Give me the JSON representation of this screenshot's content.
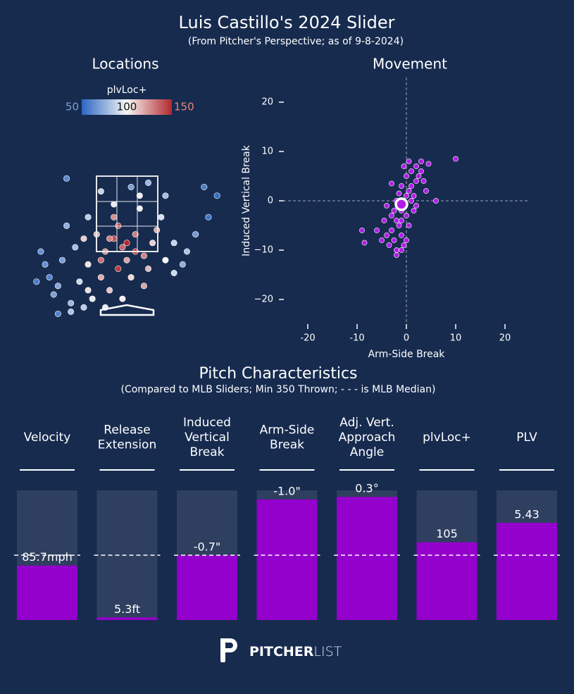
{
  "title": "Luis Castillo's 2024 Slider",
  "subtitle": "(From Pitcher's Perspective; as of 9-8-2024)",
  "logo": {
    "bold": "PITCHER",
    "light": "LIST"
  },
  "chart_data": [
    {
      "type": "scatter",
      "title": "Locations",
      "colorbar": {
        "label": "plvLoc+",
        "clim": [
          50,
          150
        ],
        "ticks": [
          50,
          100,
          150
        ],
        "colors": [
          "#2b66c2",
          "#f7f7f7",
          "#b2282d"
        ],
        "tick_colors": [
          "#7f9fd4",
          "#111111",
          "#e8857a"
        ]
      },
      "xlim": [
        -2.13,
        2.13
      ],
      "ylim": [
        0,
        3.5
      ],
      "series": [
        {
          "x": [
            -0.3,
            -0.1,
            0.2,
            -0.5,
            0.0,
            -0.7,
            0.4,
            -0.2,
            0.6,
            -0.9,
            -1.2,
            -1.5,
            -1.8,
            -2.0,
            -1.6,
            -1.1,
            -0.6,
            -0.4,
            -0.8,
            -1.3,
            0.1,
            0.5,
            0.9,
            1.1,
            1.3,
            1.6,
            1.9,
            0.8,
            0.3,
            -0.3,
            -0.9,
            -1.4,
            0.1,
            0.5,
            -1.4,
            1.8,
            2.1,
            0.9,
            -0.6,
            0.3,
            -0.2,
            0.2,
            -0.6,
            -0.4,
            0.0,
            -1.0,
            0.7,
            -0.1,
            -0.9,
            -2.1,
            -1.9,
            -1.7,
            -1.0,
            -0.5,
            -1.3,
            -1.6,
            1.1,
            1.4,
            0.4,
            -0.3
          ],
          "y": [
            1.8,
            1.6,
            1.9,
            1.5,
            1.3,
            1.9,
            1.4,
            2.1,
            1.7,
            1.2,
            1.6,
            1.3,
            0.9,
            1.5,
            0.7,
            0.8,
            0.9,
            0.6,
            0.4,
            0.3,
            0.9,
            1.1,
            1.3,
            1.7,
            1.2,
            1.9,
            2.3,
            2.3,
            2.5,
            2.6,
            2.3,
            2.1,
            3.0,
            3.1,
            3.2,
            3.0,
            2.8,
            2.8,
            2.9,
            2.8,
            1.1,
            1.5,
            1.3,
            1.8,
            1.7,
            1.8,
            2.0,
            0.4,
            0.6,
            0.8,
            1.2,
            0.5,
            0.2,
            0.2,
            0.1,
            0.05,
            1.0,
            1.5,
            0.7,
            2.3
          ],
          "values": [
            140,
            135,
            130,
            125,
            120,
            115,
            128,
            138,
            110,
            105,
            80,
            70,
            60,
            65,
            72,
            90,
            118,
            112,
            95,
            78,
            108,
            115,
            100,
            88,
            75,
            68,
            55,
            92,
            98,
            96,
            85,
            75,
            70,
            78,
            62,
            58,
            52,
            80,
            88,
            102,
            145,
            142,
            132,
            128,
            150,
            110,
            118,
            102,
            106,
            58,
            64,
            70,
            85,
            96,
            82,
            60,
            90,
            82,
            120,
            125
          ]
        }
      ]
    },
    {
      "type": "scatter",
      "title": "Movement",
      "xlabel": "Arm-Side Break",
      "ylabel": "Induced Vertical Break",
      "xlim": [
        -25,
        25
      ],
      "ylim": [
        -25,
        25
      ],
      "xticks": [
        -20,
        -10,
        0,
        10,
        20
      ],
      "yticks": [
        {
          "value": -20,
          "label": "−20"
        },
        {
          "value": -10,
          "label": "−10"
        },
        0,
        10,
        20
      ],
      "color": "#b21ee8",
      "series": [
        {
          "x": [
            -2,
            -1,
            0,
            1,
            -3,
            -1.5,
            0.5,
            2,
            -0.5,
            1,
            -4,
            -3.5,
            -2.5,
            -2,
            -1,
            0,
            1.5,
            2.5,
            3,
            0,
            -1,
            -2,
            -3,
            1,
            2,
            3.5,
            4,
            -0.5,
            0.5,
            -4.5,
            -5,
            -6,
            -9,
            -8.5,
            -2,
            -1,
            -0.5,
            0,
            4.5,
            6,
            10,
            -3,
            -1.5,
            1.5,
            2,
            -2.5,
            0.5,
            -4,
            3,
            -1
          ],
          "y": [
            -4,
            -2,
            1,
            3,
            -6,
            -5,
            2,
            4,
            -1,
            0,
            -7,
            -9,
            -8,
            -10,
            -7,
            -3,
            1,
            5,
            6,
            5,
            3,
            0,
            -3,
            6,
            7,
            4,
            2,
            7,
            8,
            -4,
            -8,
            -6,
            -6,
            -8.5,
            -11,
            -10,
            -9,
            -8,
            7.5,
            0,
            8.5,
            3.5,
            1.5,
            -2,
            -1,
            -2,
            -5,
            -1,
            8,
            -4
          ]
        }
      ],
      "mean": {
        "x": -1.0,
        "y": -0.7
      }
    },
    {
      "type": "bar",
      "title": "Pitch Characteristics",
      "subtitle": "(Compared to MLB Sliders; Min 350 Thrown; - - - is MLB Median)",
      "categories": [
        [
          "Velocity"
        ],
        [
          "Release",
          "Extension"
        ],
        [
          "Induced",
          "Vertical",
          "Break"
        ],
        [
          "Arm-Side",
          "Break"
        ],
        [
          "Adj. Vert.",
          "Approach",
          "Angle"
        ],
        [
          "plvLoc+"
        ],
        [
          "PLV"
        ]
      ],
      "values": [
        42,
        2,
        50,
        93,
        95,
        60,
        75
      ],
      "stat_labels": [
        "85.7mph",
        "5.3ft",
        "-0.7\"",
        "-1.0\"",
        "0.3°",
        "105",
        "5.43"
      ],
      "ylim": [
        0,
        100
      ],
      "median": 50,
      "color": "#9400cc",
      "track_color": "#2e3f5f"
    }
  ]
}
